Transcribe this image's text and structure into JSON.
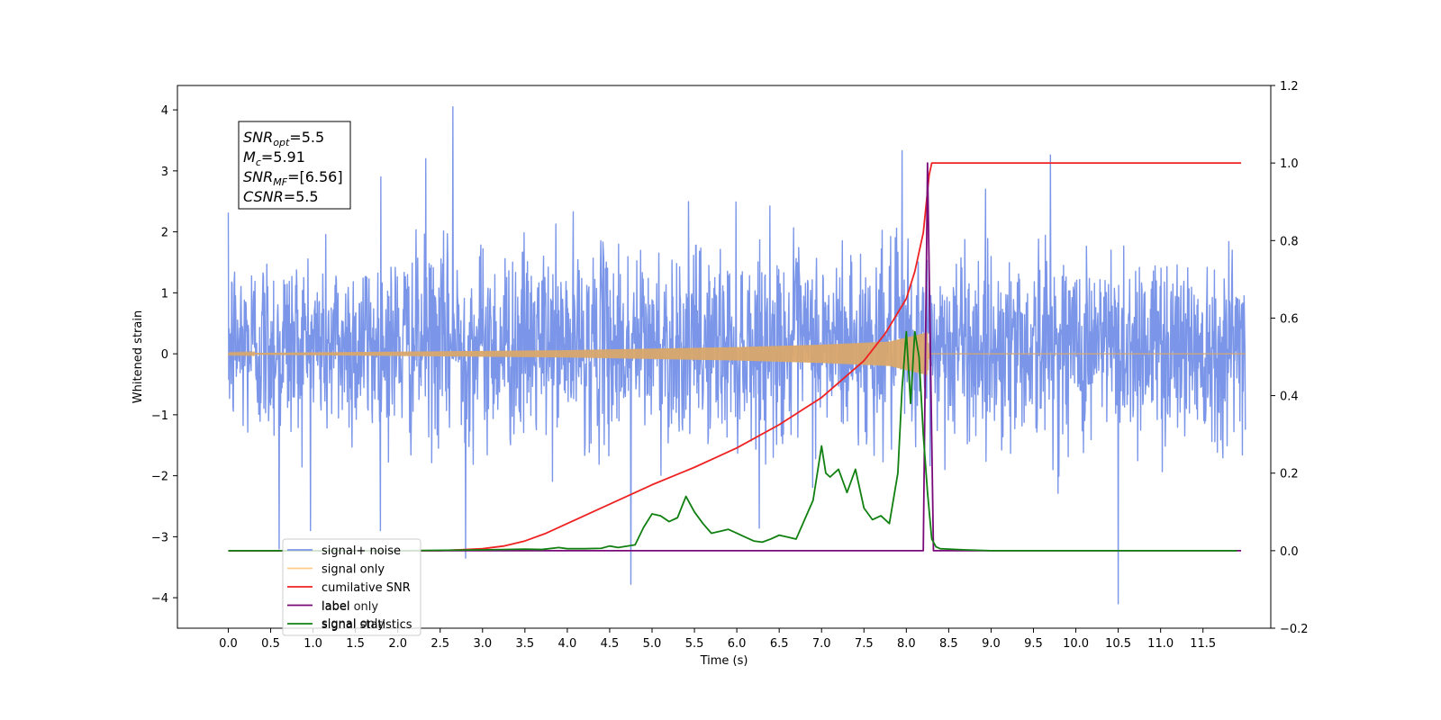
{
  "chart_data": {
    "type": "line",
    "title": "",
    "xlabel": "Time (s)",
    "ylabel": "Whitened strain",
    "ylabel_right": "",
    "xlim": [
      -0.6,
      12.3
    ],
    "ylim": [
      -4.5,
      4.4
    ],
    "ylim_right": [
      -0.2,
      1.2
    ],
    "x_ticks": [
      0.0,
      0.5,
      1.0,
      1.5,
      2.0,
      2.5,
      3.0,
      3.5,
      4.0,
      4.5,
      5.0,
      5.5,
      6.0,
      6.5,
      7.0,
      7.5,
      8.0,
      8.5,
      9.0,
      9.5,
      10.0,
      10.5,
      11.0,
      11.5
    ],
    "x_tick_labels": [
      "0.0",
      "0.5",
      "1.0",
      "1.5",
      "2.0",
      "2.5",
      "3.0",
      "3.5",
      "4.0",
      "4.5",
      "5.0",
      "5.5",
      "6.0",
      "6.5",
      "7.0",
      "7.5",
      "8.0",
      "8.5",
      "9.0",
      "9.5",
      "10.0",
      "10.5",
      "11.0",
      "11.5"
    ],
    "y_ticks": [
      -4,
      -3,
      -2,
      -1,
      0,
      1,
      2,
      3,
      4
    ],
    "y_tick_labels": [
      "−4",
      "−3",
      "−2",
      "−1",
      "0",
      "1",
      "2",
      "3",
      "4"
    ],
    "y_right_ticks": [
      -0.2,
      0.0,
      0.2,
      0.4,
      0.6,
      0.8,
      1.0,
      1.2
    ],
    "y_right_tick_labels": [
      "−0.2",
      "0.0",
      "0.2",
      "0.4",
      "0.6",
      "0.8",
      "1.0",
      "1.2"
    ],
    "grid": false,
    "legend_position": "lower-left",
    "annotation": {
      "lines": [
        {
          "main": "SNR",
          "sub": "opt",
          "value": "=5.5"
        },
        {
          "main": "M",
          "sub": "c",
          "value": "=5.91"
        },
        {
          "main": "SNR",
          "sub": "MF",
          "value": "=[6.56]"
        },
        {
          "main": "CSNR",
          "sub": "",
          "value": "=5.5"
        }
      ]
    },
    "series": [
      {
        "name": "signal+ noise",
        "color": "#7b96e8",
        "axis": "left",
        "kind": "noise",
        "x_range": [
          0.0,
          12.0
        ],
        "envelope": [
          [
            0.0,
            2.0
          ],
          [
            12.0,
            2.0
          ]
        ],
        "spikes": [
          [
            2.65,
            4.05
          ],
          [
            7.95,
            3.33
          ],
          [
            9.7,
            3.26
          ],
          [
            10.5,
            -4.1
          ],
          [
            4.75,
            -3.78
          ],
          [
            2.8,
            -3.35
          ],
          [
            0.6,
            -3.2
          ],
          [
            2.33,
            3.2
          ],
          [
            1.8,
            2.9
          ]
        ]
      },
      {
        "name": "signal only",
        "color": "#d9a66b",
        "axis": "left",
        "kind": "chirp",
        "x_range": [
          0.0,
          8.27
        ],
        "amplitude_points": [
          [
            0.0,
            0.01
          ],
          [
            4.0,
            0.06
          ],
          [
            6.0,
            0.11
          ],
          [
            7.0,
            0.15
          ],
          [
            7.8,
            0.2
          ],
          [
            8.25,
            0.35
          ],
          [
            8.27,
            0.0
          ]
        ]
      },
      {
        "name": "cumilative SNR",
        "color": "#ee2222",
        "axis": "right",
        "kind": "line",
        "x": [
          0.0,
          2.0,
          2.5,
          3.0,
          3.25,
          3.5,
          3.75,
          4.0,
          4.25,
          4.5,
          5.0,
          5.5,
          6.0,
          6.5,
          7.0,
          7.5,
          7.75,
          8.0,
          8.1,
          8.2,
          8.27,
          8.3,
          11.95
        ],
        "y": [
          0.0,
          0.0,
          0.0,
          0.005,
          0.012,
          0.025,
          0.045,
          0.07,
          0.095,
          0.12,
          0.17,
          0.215,
          0.265,
          0.325,
          0.395,
          0.49,
          0.56,
          0.65,
          0.72,
          0.82,
          0.97,
          1.0,
          1.0
        ]
      },
      {
        "name": "label",
        "color": "#7a0a7a",
        "axis": "right",
        "kind": "line",
        "x": [
          0.0,
          8.2,
          8.25,
          8.32,
          11.95
        ],
        "y": [
          0.0,
          0.0,
          1.0,
          0.0,
          0.0
        ]
      },
      {
        "name": "signal statistics",
        "color": "#108010",
        "axis": "right",
        "kind": "line",
        "x": [
          0.0,
          2.0,
          3.0,
          3.5,
          3.7,
          3.9,
          4.0,
          4.2,
          4.4,
          4.5,
          4.6,
          4.8,
          4.9,
          5.0,
          5.1,
          5.2,
          5.3,
          5.4,
          5.5,
          5.6,
          5.7,
          5.8,
          5.9,
          6.0,
          6.1,
          6.2,
          6.3,
          6.4,
          6.5,
          6.6,
          6.7,
          6.8,
          6.9,
          7.0,
          7.05,
          7.1,
          7.2,
          7.3,
          7.4,
          7.5,
          7.6,
          7.7,
          7.8,
          7.9,
          7.95,
          8.0,
          8.05,
          8.1,
          8.15,
          8.2,
          8.25,
          8.3,
          8.35,
          8.4,
          8.5,
          8.7,
          9.0,
          11.9
        ],
        "y": [
          0.0,
          0.0,
          0.002,
          0.004,
          0.003,
          0.008,
          0.005,
          0.005,
          0.006,
          0.012,
          0.008,
          0.015,
          0.06,
          0.095,
          0.09,
          0.075,
          0.085,
          0.14,
          0.1,
          0.07,
          0.045,
          0.05,
          0.055,
          0.045,
          0.035,
          0.025,
          0.022,
          0.03,
          0.04,
          0.035,
          0.03,
          0.08,
          0.13,
          0.27,
          0.2,
          0.19,
          0.21,
          0.15,
          0.21,
          0.11,
          0.08,
          0.09,
          0.07,
          0.2,
          0.42,
          0.565,
          0.38,
          0.565,
          0.5,
          0.3,
          0.15,
          0.03,
          0.01,
          0.005,
          0.004,
          0.002,
          0.0,
          0.0
        ]
      }
    ],
    "legend": [
      {
        "label": "signal+ noise",
        "color": "#7b96e8"
      },
      {
        "label": "signal only",
        "color": "#ffcc88"
      },
      {
        "label": "cumilative SNR",
        "color": "#ee2222"
      },
      {
        "label": "label",
        "color": "#7a0a7a"
      },
      {
        "label": "signal statistics",
        "color": "#108010"
      }
    ],
    "hidden_legend_text": [
      "label only",
      "signal only"
    ]
  }
}
